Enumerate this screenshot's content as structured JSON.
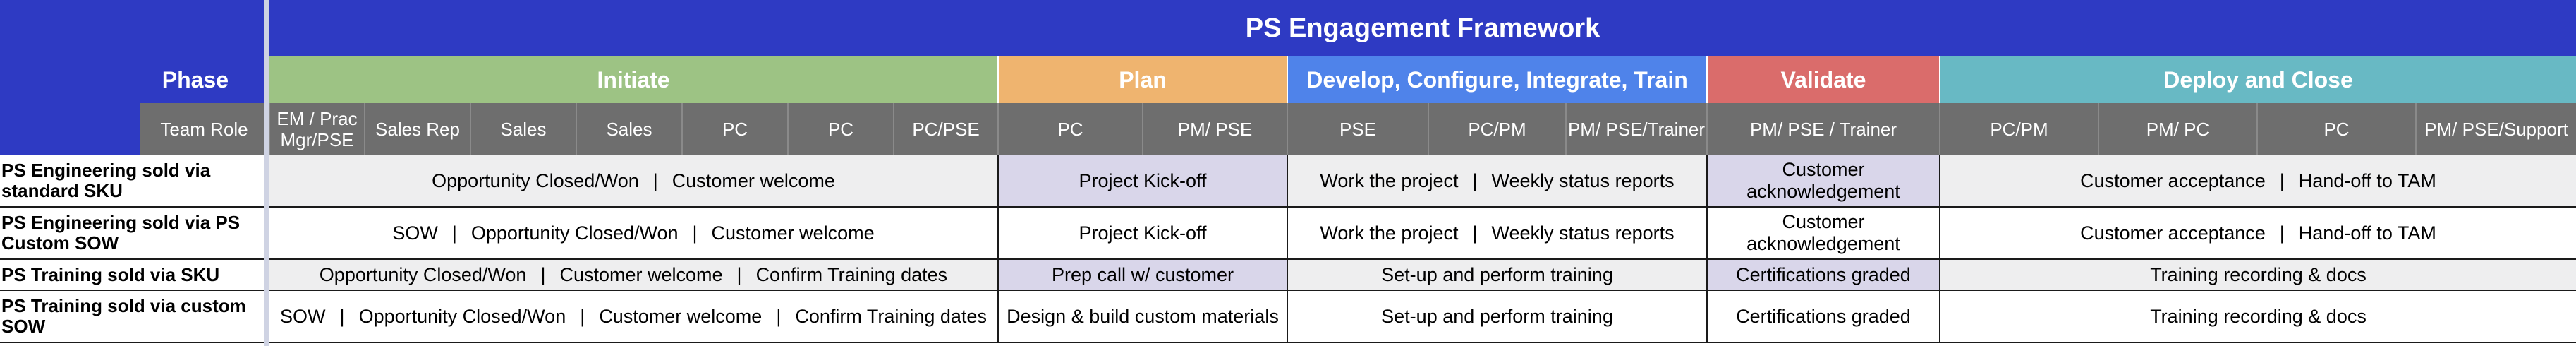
{
  "title": "PS Engagement Framework",
  "phase_label": "Phase",
  "team_role_label": "Team Role",
  "phases": [
    {
      "name": "Initiate",
      "color": "#9dc384"
    },
    {
      "name": "Plan",
      "color": "#efb46f"
    },
    {
      "name": "Develop, Configure, Integrate, Train",
      "color": "#4f83ea"
    },
    {
      "name": "Validate",
      "color": "#da6c6b"
    },
    {
      "name": "Deploy and Close",
      "color": "#68b9c4"
    }
  ],
  "roles": [
    "EM / Prac Mgr/PSE",
    "Sales Rep",
    "Sales",
    "Sales",
    "PC",
    "PC",
    "PC/PSE",
    "PC",
    "PM/ PSE",
    "PSE",
    "PC/PM",
    "PM/ PSE/Trainer",
    "PM/ PSE / Trainer",
    "PC/PM",
    "PM/ PC",
    "PC",
    "PM/ PSE/Support"
  ],
  "rows": [
    {
      "label": "PS Engineering sold via standard SKU",
      "initiate": [
        "Opportunity Closed/Won",
        "Customer welcome"
      ],
      "plan": "Project Kick-off",
      "develop": [
        "Work the project",
        "Weekly status reports"
      ],
      "validate": "Customer acknowledgement",
      "deploy": [
        "Customer acceptance",
        "Hand-off to TAM"
      ]
    },
    {
      "label": "PS Engineering sold via PS Custom SOW",
      "initiate": [
        "SOW",
        "Opportunity Closed/Won",
        "Customer welcome"
      ],
      "plan": "Project Kick-off",
      "develop": [
        "Work the project",
        "Weekly status reports"
      ],
      "validate": "Customer acknowledgement",
      "deploy": [
        "Customer acceptance",
        "Hand-off to TAM"
      ]
    },
    {
      "label": "PS Training sold via SKU",
      "initiate": [
        "Opportunity Closed/Won",
        "Customer welcome",
        "Confirm Training dates"
      ],
      "plan": "Prep call w/ customer",
      "develop": "Set-up and perform training",
      "validate": "Certifications graded",
      "deploy": "Training recording & docs"
    },
    {
      "label": "PS Training sold via custom SOW",
      "initiate": [
        "SOW",
        "Opportunity Closed/Won",
        "Customer welcome",
        "Confirm Training dates"
      ],
      "plan": "Design & build custom materials",
      "develop": "Set-up and perform training",
      "validate": "Certifications graded",
      "deploy": "Training recording & docs"
    }
  ],
  "separator": "|"
}
